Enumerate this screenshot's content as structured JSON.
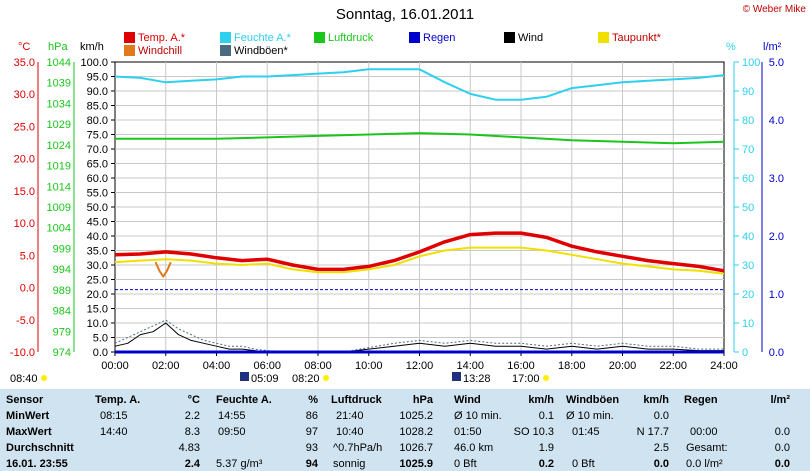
{
  "title": "Sonntag, 16.01.2011",
  "copyright": "© Weber Mike",
  "legend": [
    {
      "label": "Temp. A.*",
      "color": "#e00000"
    },
    {
      "label": "Feuchte A.*",
      "color": "#2ed0ee"
    },
    {
      "label": "Luftdruck",
      "color": "#1bc61b"
    },
    {
      "label": "Regen",
      "color": "#0000cc"
    },
    {
      "label": "Wind",
      "color": "#000000"
    },
    {
      "label": "Taupunkt*",
      "color": "#f0e000"
    },
    {
      "label": "Windchill",
      "color": "#e07a1c"
    },
    {
      "label": "Windböen*",
      "color": "#4a6a80"
    }
  ],
  "axis_units": {
    "temp": "°C",
    "pressure": "hPa",
    "wind": "km/h",
    "humidity": "%",
    "rain": "l/m²"
  },
  "chart_data": {
    "type": "line",
    "title": "Sonntag, 16.01.2011",
    "x_ticks": [
      "00:00",
      "02:00",
      "04:00",
      "06:00",
      "08:00",
      "10:00",
      "12:00",
      "14:00",
      "16:00",
      "18:00",
      "20:00",
      "22:00",
      "24:00"
    ],
    "axes": {
      "temp_ticks": [
        "35.0",
        "30.0",
        "25.0",
        "20.0",
        "15.0",
        "10.0",
        "5.0",
        "0.0",
        "-5.0",
        "-10.0"
      ],
      "pressure_ticks": [
        "1044",
        "1039",
        "1034",
        "1029",
        "1024",
        "1019",
        "1014",
        "1009",
        "1004",
        "999",
        "994",
        "989",
        "984",
        "979",
        "974"
      ],
      "wind_ticks": [
        "100.0",
        "95.0",
        "90.0",
        "85.0",
        "80.0",
        "75.0",
        "70.0",
        "65.0",
        "60.0",
        "55.0",
        "50.0",
        "45.0",
        "40.0",
        "35.0",
        "30.0",
        "25.0",
        "20.0",
        "15.0",
        "10.0",
        "5.0",
        "0.0"
      ],
      "humidity_ticks": [
        "100",
        "90",
        "80",
        "70",
        "60",
        "50",
        "40",
        "30",
        "20",
        "10",
        "0"
      ],
      "rain_ticks": [
        "5.0",
        "4.0",
        "3.0",
        "2.0",
        "1.0",
        "0.0"
      ],
      "wind_range": [
        0,
        100
      ],
      "grid": true
    },
    "series": [
      {
        "name": "Feuchte A.*",
        "color": "#2ed0ee",
        "axis": "wind",
        "x": [
          0,
          1,
          2,
          3,
          4,
          5,
          6,
          7,
          8,
          9,
          10,
          11,
          12,
          13,
          14,
          15,
          16,
          17,
          18,
          19,
          20,
          21,
          22,
          23,
          24
        ],
        "values": [
          95,
          94.5,
          93,
          93.5,
          94,
          95,
          95,
          95.5,
          96,
          96.5,
          97.5,
          97.5,
          97.5,
          93,
          89,
          87,
          87,
          88,
          91,
          92,
          93,
          93.5,
          94,
          94.5,
          95.5
        ]
      },
      {
        "name": "Luftdruck",
        "color": "#1bc61b",
        "axis": "wind",
        "x": [
          0,
          2,
          4,
          6,
          8,
          10,
          12,
          14,
          16,
          18,
          20,
          22,
          24
        ],
        "values": [
          73.5,
          73.5,
          73.5,
          74,
          74.5,
          75,
          75.5,
          75,
          74,
          73,
          72.5,
          72,
          72.5
        ]
      },
      {
        "name": "Temp. A.*",
        "color": "#e00000",
        "axis": "wind",
        "x": [
          0,
          1,
          2,
          3,
          4,
          5,
          6,
          7,
          8,
          9,
          10,
          11,
          12,
          13,
          14,
          15,
          16,
          17,
          18,
          19,
          20,
          21,
          22,
          23,
          24
        ],
        "values": [
          33.5,
          33.8,
          34.5,
          33.8,
          32.5,
          31.5,
          32,
          30,
          28.5,
          28.5,
          29.5,
          31.5,
          34.5,
          38,
          40.5,
          41,
          41,
          39.5,
          36.5,
          34.5,
          33,
          31.5,
          30.5,
          29.5,
          28
        ]
      },
      {
        "name": "Taupunkt*",
        "color": "#f0e000",
        "axis": "wind",
        "x": [
          0,
          1,
          2,
          3,
          4,
          5,
          6,
          7,
          8,
          9,
          10,
          11,
          12,
          13,
          14,
          15,
          16,
          17,
          18,
          19,
          20,
          21,
          22,
          23,
          24
        ],
        "values": [
          31,
          31.5,
          32,
          31.5,
          30.5,
          30,
          30.5,
          28.5,
          27.5,
          27.5,
          28.5,
          30,
          33,
          35,
          36,
          36,
          36,
          35,
          33.5,
          32,
          30.5,
          29.5,
          28.5,
          28,
          27
        ]
      },
      {
        "name": "Windchill",
        "color": "#e07a1c",
        "axis": "wind",
        "x": [
          1.6,
          1.75,
          1.9,
          2.05,
          2.2
        ],
        "values": [
          31,
          28,
          26,
          28,
          31
        ]
      },
      {
        "name": "Wind",
        "color": "#000000",
        "axis": "wind",
        "x": [
          0,
          0.5,
          1,
          1.5,
          2,
          2.5,
          3,
          3.5,
          4,
          4.5,
          5,
          5.5,
          6,
          7,
          8,
          9,
          10,
          11,
          12,
          13,
          14,
          15,
          16,
          17,
          18,
          19,
          20,
          21,
          22,
          23,
          24
        ],
        "values": [
          2,
          3,
          6,
          7,
          10,
          6,
          4,
          3,
          2,
          1,
          1,
          0.5,
          0,
          0,
          0,
          0,
          1,
          2,
          3,
          2,
          3,
          2,
          2,
          1,
          2,
          1,
          2,
          1,
          1,
          0.5,
          0.5
        ]
      },
      {
        "name": "Windböen*",
        "color": "#4a6a80",
        "axis": "wind",
        "x": [
          0,
          0.5,
          1,
          1.5,
          2,
          2.5,
          3,
          3.5,
          4,
          4.5,
          5,
          5.5,
          6,
          7,
          8,
          9,
          10,
          11,
          12,
          13,
          14,
          15,
          16,
          17,
          18,
          19,
          20,
          21,
          22,
          23,
          24
        ],
        "values": [
          3,
          5,
          7,
          9,
          11,
          8,
          6,
          4,
          3,
          2,
          2,
          1,
          0.5,
          0,
          0,
          0,
          1.5,
          3,
          4,
          3,
          4,
          3,
          3,
          2,
          3,
          2,
          3,
          2,
          2,
          1,
          1
        ]
      },
      {
        "name": "Regen",
        "color": "#0000cc",
        "axis": "wind",
        "x": [
          0,
          24
        ],
        "values": [
          0,
          0
        ]
      }
    ],
    "sun": {
      "below_left": "08:40",
      "sunrise": "05:09",
      "sunrise_mid": "08:20",
      "sunset": "13:28",
      "sunset_mid": "17:00"
    }
  },
  "stats": {
    "headers": {
      "sensor": "Sensor",
      "temp": "Temp. A.",
      "temp_unit": "°C",
      "hum": "Feuchte A.",
      "hum_unit": "%",
      "press": "Luftdruck",
      "press_unit": "hPa",
      "wind": "Wind",
      "wind_unit": "km/h",
      "gust": "Windböen",
      "gust_unit": "km/h",
      "rain": "Regen",
      "rain_unit": "l/m²"
    },
    "rows": [
      {
        "label": "MinWert",
        "temp_time": "08:15",
        "temp_val": "2.2",
        "hum_time": "14:55",
        "hum_val": "86",
        "press_time": "21:40",
        "press_val": "1025.2",
        "wind_time": "Ø 10 min.",
        "wind_val": "0.1",
        "gust_time": "Ø 10 min.",
        "gust_val": "0.0",
        "rain_time": "",
        "rain_val": ""
      },
      {
        "label": "MaxWert",
        "temp_time": "14:40",
        "temp_val": "8.3",
        "hum_time": "09:50",
        "hum_val": "97",
        "press_time": "10:40",
        "press_val": "1028.2",
        "wind_time": "01:50",
        "wind_dir": "SO 10.3",
        "wind_val": "",
        "gust_time": "01:45",
        "gust_val": "N 17.7",
        "rain_time": "00:00",
        "rain_val": "0.0"
      },
      {
        "label": "Durchschnitt",
        "temp_time": "",
        "temp_val": "4.83",
        "hum_time": "",
        "hum_val": "93",
        "press_time": "^0.7hPa/h",
        "press_val": "1026.7",
        "wind_time": "46.0 km",
        "wind_val": "1.9",
        "gust_time": "",
        "gust_val": "2.5",
        "rain_time": "Gesamt:",
        "rain_val": "0.0"
      },
      {
        "label": "16.01. 23:55",
        "temp_time": "",
        "temp_val": "2.4",
        "hum_time": "5.37 g/m³",
        "hum_val": "94",
        "press_time": "sonnig",
        "press_val": "1025.9",
        "wind_time": "0 Bft",
        "wind_val": "0.2",
        "gust_time": "0 Bft",
        "gust_val": "0.0",
        "rain_time": "0.0 l/m²",
        "rain_val": "0.0"
      }
    ]
  }
}
